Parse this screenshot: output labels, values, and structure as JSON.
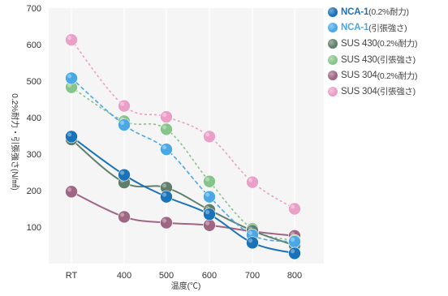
{
  "chart_data": {
    "type": "line",
    "xlabel": "温度(℃)",
    "ylabel": "0.2%耐力・引張強さ(N/㎟)",
    "ylim": [
      0,
      700
    ],
    "yticks": [
      100,
      200,
      300,
      400,
      500,
      600,
      700
    ],
    "categories": [
      "RT",
      "400",
      "500",
      "600",
      "700",
      "800"
    ],
    "legend_position": "right",
    "grid": "vertical",
    "series": [
      {
        "id": "nca1_ys",
        "name": "NCA-1",
        "note": "(0.2%耐力)",
        "bold": true,
        "color": "#1a73b8",
        "line": "solid",
        "values": [
          348,
          243,
          183,
          135,
          57,
          28
        ]
      },
      {
        "id": "nca1_ts",
        "name": "NCA-1",
        "note": "(引張強さ)",
        "bold": true,
        "color": "#4aa8e6",
        "line": "dashed",
        "values": [
          508,
          380,
          313,
          183,
          78,
          60
        ]
      },
      {
        "id": "sus430_ys",
        "name": "SUS 430",
        "note": "(0.2%耐力)",
        "bold": false,
        "color": "#5f7f6c",
        "line": "solid",
        "values": [
          340,
          222,
          208,
          147,
          90,
          50
        ]
      },
      {
        "id": "sus430_ts",
        "name": "SUS 430",
        "note": "(引張強さ)",
        "bold": false,
        "color": "#86c48a",
        "line": "dashed",
        "values": [
          483,
          390,
          368,
          225,
          95,
          63
        ]
      },
      {
        "id": "sus304_ys",
        "name": "SUS 304",
        "note": "(0.2%耐力)",
        "bold": false,
        "color": "#9e6683",
        "line": "solid",
        "values": [
          197,
          128,
          112,
          105,
          88,
          76
        ]
      },
      {
        "id": "sus304_ts",
        "name": "SUS 304",
        "note": "(引張強さ)",
        "bold": false,
        "color": "#ea9fc7",
        "line": "dashed",
        "values": [
          613,
          432,
          402,
          348,
          223,
          150
        ]
      }
    ]
  }
}
